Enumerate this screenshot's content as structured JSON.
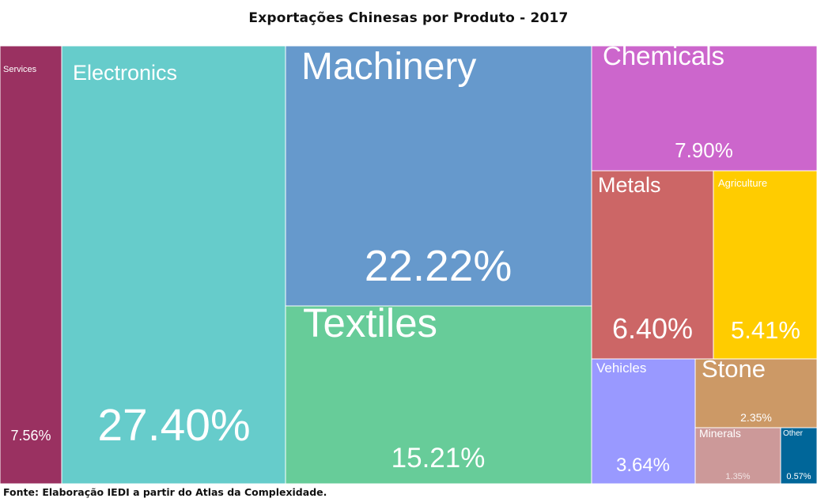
{
  "title": "Exportações Chinesas por Produto - 2017",
  "source": "Fonte: Elaboração IEDI a partir do Atlas da Complexidade.",
  "chart_data": {
    "type": "treemap",
    "title": "Exportações Chinesas por Produto - 2017",
    "unit": "%",
    "items": [
      {
        "name": "Services",
        "value": 7.56,
        "label": "7.56%",
        "color": "#9A3161"
      },
      {
        "name": "Electronics",
        "value": 27.4,
        "label": "27.40%",
        "color": "#66CCCB"
      },
      {
        "name": "Machinery",
        "value": 22.22,
        "label": "22.22%",
        "color": "#6699CC"
      },
      {
        "name": "Textiles",
        "value": 15.21,
        "label": "15.21%",
        "color": "#67CC99"
      },
      {
        "name": "Chemicals",
        "value": 7.9,
        "label": "7.90%",
        "color": "#CC66CC"
      },
      {
        "name": "Metals",
        "value": 6.4,
        "label": "6.40%",
        "color": "#CC6666"
      },
      {
        "name": "Agriculture",
        "value": 5.41,
        "label": "5.41%",
        "color": "#FFCC00"
      },
      {
        "name": "Vehicles",
        "value": 3.64,
        "label": "3.64%",
        "color": "#9999FF"
      },
      {
        "name": "Stone",
        "value": 2.35,
        "label": "2.35%",
        "color": "#CC9966"
      },
      {
        "name": "Minerals",
        "value": 1.35,
        "label": "1.35%",
        "color": "#CC9999"
      },
      {
        "name": "Other",
        "value": 0.57,
        "label": "0.57%",
        "color": "#006699"
      }
    ]
  }
}
